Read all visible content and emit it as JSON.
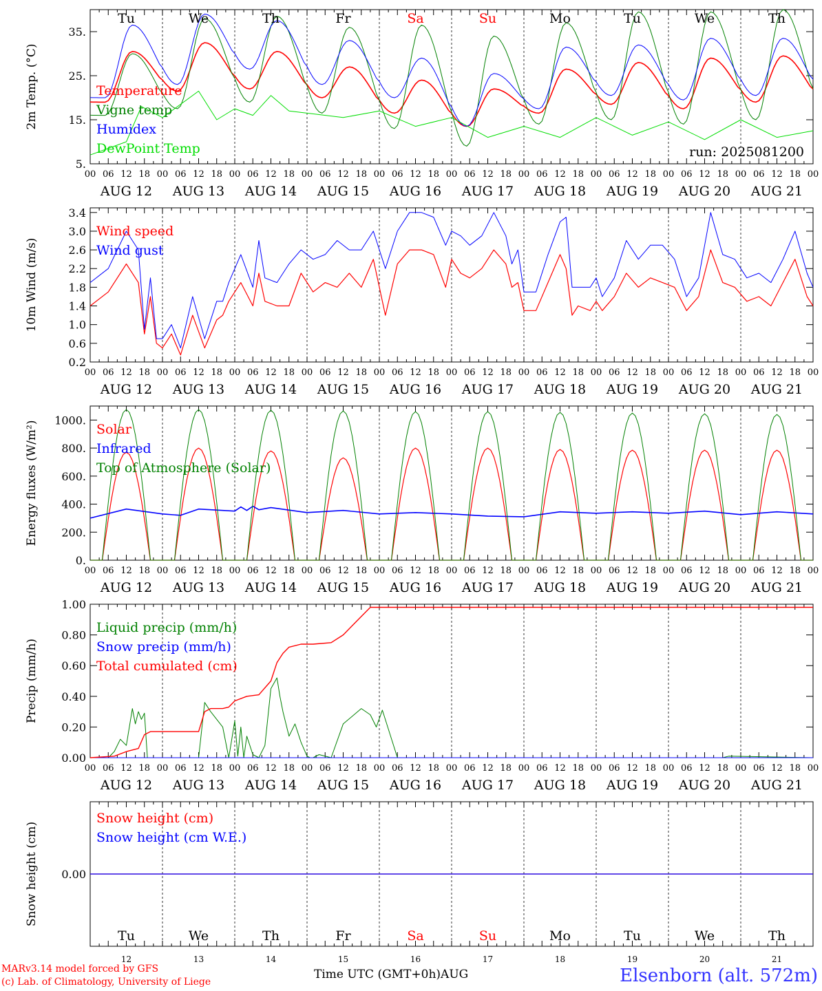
{
  "run_label": "run: 2025081200",
  "station": "Elsenborn (alt. 572m)",
  "footer": {
    "model_line": "MARv3.14 model forced by GFS",
    "credit_line": "(c) Lab. of Climatology, University of Liege",
    "xlabel": "Time UTC (GMT+0h)",
    "month": "AUG"
  },
  "days": [
    "Tu",
    "We",
    "Th",
    "Fr",
    "Sa",
    "Su",
    "Mo",
    "Tu",
    "We",
    "Th"
  ],
  "weekend_flags": [
    false,
    false,
    false,
    false,
    true,
    true,
    false,
    false,
    false,
    false
  ],
  "date_labels": [
    "AUG 12",
    "AUG 13",
    "AUG 14",
    "AUG 15",
    "AUG 16",
    "AUG 17",
    "AUG 18",
    "AUG 19",
    "AUG 20",
    "AUG 21"
  ],
  "day_numbers": [
    "12",
    "13",
    "14",
    "15",
    "16",
    "17",
    "18",
    "19",
    "20",
    "21"
  ],
  "hour_ticks": [
    "00",
    "06",
    "12",
    "18"
  ],
  "end_tick": "00",
  "colors": {
    "red": "#ff0000",
    "green": "#008000",
    "blue": "#0000ff",
    "lightgreen": "#00dd00",
    "weekend": "#ff0000",
    "station": "#3333ff"
  },
  "chart_data": [
    {
      "type": "line",
      "ylabel": "2m Temp. (°C)",
      "ylim": [
        5,
        40
      ],
      "yticks": [
        "5.",
        "15.",
        "25.",
        "35."
      ],
      "ytick_values": [
        5,
        15,
        25,
        35
      ],
      "x_unit": "hours since AUG 12 00 UTC",
      "series": [
        {
          "name": "Temperature",
          "color": "#ff0000",
          "width": 1.6,
          "mode": "diurnal",
          "min": [
            19,
            21.5,
            22,
            20,
            16.5,
            13.5,
            16.5,
            18.5,
            17.5,
            19
          ],
          "max": [
            30.5,
            32.5,
            30.5,
            27,
            24,
            22,
            26.5,
            28,
            29,
            29.5
          ]
        },
        {
          "name": "Vigne temp",
          "color": "#008000",
          "width": 1,
          "mode": "diurnal",
          "min": [
            16,
            17.5,
            19,
            16.5,
            13,
            9,
            14,
            15,
            14,
            15
          ],
          "max": [
            30,
            38,
            38.5,
            36,
            36.5,
            34,
            37,
            39.5,
            39.5,
            40
          ]
        },
        {
          "name": "Humidex",
          "color": "#0000ff",
          "width": 1,
          "mode": "diurnal",
          "min": [
            20,
            23,
            26.5,
            23,
            20,
            13.5,
            17.5,
            20.5,
            19.5,
            20.5
          ],
          "max": [
            36.5,
            39,
            37.5,
            33,
            29,
            25.5,
            31.5,
            32,
            33.5,
            33.5
          ]
        },
        {
          "name": "DewPoint Temp",
          "color": "#00dd00",
          "width": 1,
          "mode": "points",
          "x": [
            0,
            12,
            17,
            24,
            36,
            42,
            48,
            54,
            60,
            66,
            72,
            84,
            96,
            108,
            120,
            132,
            144,
            156,
            168,
            180,
            192,
            204,
            216,
            228,
            240
          ],
          "y": [
            7,
            10,
            18,
            15.5,
            21.5,
            15,
            17.5,
            16,
            20.5,
            17,
            16.5,
            15.5,
            17,
            13.5,
            15.5,
            11,
            13.5,
            11,
            15.5,
            11.5,
            14.5,
            10.5,
            15,
            11,
            12.5
          ]
        }
      ],
      "legend_position": "left-middle",
      "grid": "vertical dashed day separators"
    },
    {
      "type": "line",
      "ylabel": "10m Wind (m/s)",
      "ylim": [
        0.2,
        3.5
      ],
      "yticks": [
        "0.2",
        "0.6",
        "1.0",
        "1.4",
        "1.8",
        "2.2",
        "2.6",
        "3.0",
        "3.4"
      ],
      "ytick_values": [
        0.2,
        0.6,
        1.0,
        1.4,
        1.8,
        2.2,
        2.6,
        3.0,
        3.4
      ],
      "series": [
        {
          "name": "Wind speed",
          "color": "#ff0000",
          "width": 1.2,
          "mode": "points",
          "x": [
            0,
            6,
            12,
            16,
            18,
            20,
            22,
            24,
            27,
            30,
            34,
            38,
            42,
            44,
            46,
            50,
            54,
            56,
            58,
            62,
            66,
            70,
            74,
            78,
            82,
            86,
            90,
            94,
            98,
            102,
            106,
            110,
            114,
            118,
            120,
            123,
            126,
            130,
            134,
            138,
            140,
            142,
            144,
            148,
            152,
            156,
            158,
            160,
            162,
            166,
            168,
            170,
            174,
            178,
            182,
            186,
            190,
            194,
            198,
            202,
            206,
            210,
            214,
            218,
            222,
            226,
            230,
            234,
            238,
            240
          ],
          "y": [
            1.4,
            1.7,
            2.3,
            1.9,
            0.8,
            1.6,
            0.6,
            0.5,
            0.8,
            0.35,
            1.2,
            0.5,
            1.1,
            1.2,
            1.5,
            1.9,
            1.4,
            2.1,
            1.5,
            1.4,
            1.4,
            2.1,
            1.7,
            1.9,
            1.8,
            2.1,
            1.8,
            2.4,
            1.2,
            2.3,
            2.6,
            2.6,
            2.5,
            1.8,
            2.4,
            2.1,
            2.0,
            2.2,
            2.6,
            2.3,
            1.8,
            1.9,
            1.3,
            1.3,
            1.9,
            2.5,
            2.2,
            1.2,
            1.4,
            1.3,
            1.5,
            1.3,
            1.6,
            2.1,
            1.8,
            2.0,
            1.9,
            1.8,
            1.3,
            1.6,
            2.6,
            1.9,
            1.8,
            1.5,
            1.6,
            1.4,
            1.9,
            2.4,
            1.6,
            1.4
          ]
        },
        {
          "name": "Wind gust",
          "color": "#0000ff",
          "width": 1,
          "mode": "points",
          "x": [
            0,
            6,
            12,
            16,
            18,
            20,
            22,
            24,
            27,
            30,
            34,
            38,
            42,
            44,
            46,
            50,
            54,
            56,
            58,
            62,
            66,
            70,
            74,
            78,
            82,
            86,
            90,
            94,
            98,
            102,
            106,
            110,
            114,
            118,
            120,
            123,
            126,
            130,
            134,
            138,
            140,
            142,
            144,
            148,
            152,
            156,
            158,
            160,
            162,
            166,
            168,
            170,
            174,
            178,
            182,
            186,
            190,
            194,
            198,
            202,
            206,
            210,
            214,
            218,
            222,
            226,
            230,
            234,
            238,
            240
          ],
          "y": [
            1.9,
            2.2,
            3.0,
            2.6,
            0.9,
            2.0,
            0.7,
            0.7,
            1.0,
            0.5,
            1.6,
            0.7,
            1.5,
            1.5,
            1.9,
            2.5,
            1.8,
            2.8,
            2.0,
            1.9,
            2.3,
            2.6,
            2.4,
            2.5,
            2.8,
            2.6,
            2.6,
            3.0,
            2.2,
            3.0,
            3.4,
            3.4,
            3.3,
            2.7,
            3.0,
            2.9,
            2.7,
            2.9,
            3.4,
            2.9,
            2.3,
            2.6,
            1.7,
            1.7,
            2.5,
            3.2,
            3.3,
            1.8,
            1.8,
            1.8,
            2.0,
            1.6,
            2.0,
            2.8,
            2.4,
            2.7,
            2.7,
            2.4,
            1.6,
            2.0,
            3.4,
            2.5,
            2.4,
            2.0,
            2.1,
            1.9,
            2.4,
            3.0,
            2.1,
            1.8
          ]
        }
      ],
      "legend_position": "top-left"
    },
    {
      "type": "line",
      "ylabel": "Energy fluxes (W/m²)",
      "ylim": [
        0,
        1100
      ],
      "yticks": [
        "0.",
        "200.",
        "400.",
        "600.",
        "800.",
        "1000."
      ],
      "ytick_values": [
        0,
        200,
        400,
        600,
        800,
        1000
      ],
      "series": [
        {
          "name": "Solar",
          "color": "#ff0000",
          "width": 1.2,
          "mode": "daylight",
          "peaks": [
            770,
            800,
            780,
            730,
            800,
            800,
            790,
            785,
            785,
            785
          ]
        },
        {
          "name": "Infrared",
          "color": "#0000ff",
          "width": 1.6,
          "mode": "points",
          "x": [
            0,
            12,
            24,
            30,
            36,
            48,
            50,
            52,
            54,
            56,
            60,
            72,
            84,
            96,
            108,
            120,
            132,
            144,
            156,
            168,
            180,
            192,
            204,
            216,
            228,
            240
          ],
          "y": [
            300,
            365,
            330,
            320,
            365,
            350,
            380,
            355,
            385,
            360,
            375,
            340,
            355,
            330,
            340,
            330,
            315,
            310,
            345,
            335,
            345,
            335,
            350,
            325,
            345,
            330
          ]
        },
        {
          "name": "Top of Atmosphere (Solar)",
          "color": "#008000",
          "width": 1,
          "mode": "daylight",
          "peaks": [
            1075,
            1075,
            1070,
            1065,
            1060,
            1060,
            1055,
            1050,
            1045,
            1040
          ]
        }
      ],
      "legend_position": "top-left"
    },
    {
      "type": "line",
      "ylabel": "Precip (mm/h)",
      "ylim": [
        0,
        1
      ],
      "yticks": [
        "0.00",
        "0.20",
        "0.40",
        "0.60",
        "0.80",
        "1.00"
      ],
      "ytick_values": [
        0,
        0.2,
        0.4,
        0.6,
        0.8,
        1.0
      ],
      "series": [
        {
          "name": "Liquid precip (mm/h)",
          "color": "#008000",
          "width": 1,
          "mode": "points",
          "x": [
            0,
            6,
            8,
            10,
            12,
            14,
            15,
            16,
            17,
            18,
            19,
            22,
            30,
            36,
            38,
            40,
            44,
            46,
            48,
            49,
            50,
            51,
            52,
            54,
            56,
            58,
            60,
            62,
            63,
            64,
            66,
            68,
            70,
            72,
            73,
            74,
            76,
            80,
            84,
            90,
            93,
            95,
            97,
            102,
            105,
            210,
            212,
            240
          ],
          "y": [
            0,
            0,
            0.04,
            0.12,
            0.08,
            0.32,
            0.22,
            0.3,
            0.25,
            0.29,
            0,
            0,
            0,
            0,
            0.36,
            0.3,
            0.2,
            0,
            0.24,
            0.01,
            0.2,
            0,
            0.14,
            0.02,
            0,
            0.08,
            0.45,
            0.52,
            0.4,
            0.3,
            0.14,
            0.22,
            0.1,
            0.01,
            0,
            0,
            0.02,
            0,
            0.22,
            0.32,
            0.28,
            0.2,
            0.31,
            0,
            0,
            0,
            0.01,
            0
          ]
        },
        {
          "name": "Snow precip (mm/h)",
          "color": "#0000ff",
          "width": 1,
          "mode": "points",
          "x": [
            0,
            240
          ],
          "y": [
            0,
            0
          ]
        },
        {
          "name": "Total cumulated (cm)",
          "color": "#ff0000",
          "width": 1.4,
          "mode": "points",
          "x": [
            0,
            8,
            12,
            16,
            18,
            20,
            24,
            36,
            38,
            40,
            44,
            46,
            48,
            52,
            56,
            60,
            62,
            64,
            66,
            70,
            74,
            80,
            84,
            90,
            93,
            96,
            240
          ],
          "y": [
            0,
            0.01,
            0.04,
            0.06,
            0.15,
            0.17,
            0.17,
            0.17,
            0.3,
            0.32,
            0.32,
            0.33,
            0.37,
            0.4,
            0.41,
            0.5,
            0.62,
            0.68,
            0.72,
            0.74,
            0.74,
            0.75,
            0.8,
            0.92,
            0.98,
            0.98,
            0.98
          ]
        }
      ],
      "legend_position": "top-left"
    },
    {
      "type": "line",
      "ylabel": "Snow height (cm)",
      "ylim": [
        -1,
        1
      ],
      "yticks": [
        "0.00"
      ],
      "ytick_values": [
        0
      ],
      "series": [
        {
          "name": "Snow height (cm)",
          "color": "#ff0000",
          "width": 1.2,
          "mode": "points",
          "x": [
            0,
            240
          ],
          "y": [
            0,
            0
          ]
        },
        {
          "name": "Snow height (cm W.E.)",
          "color": "#0000ff",
          "width": 1.2,
          "mode": "points",
          "x": [
            0,
            240
          ],
          "y": [
            0,
            0
          ]
        }
      ],
      "legend_position": "top-left"
    }
  ]
}
